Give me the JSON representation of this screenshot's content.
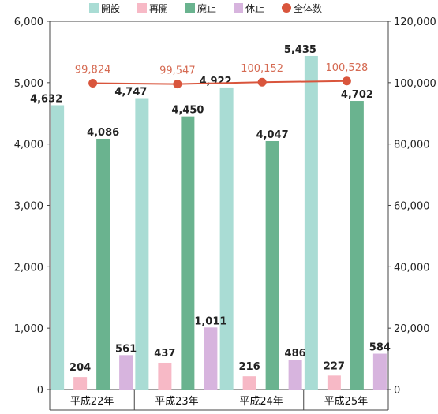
{
  "chart_data": {
    "type": "bar",
    "categories": [
      "平成22年",
      "平成23年",
      "平成24年",
      "平成25年"
    ],
    "series": [
      {
        "name": "開設",
        "values": [
          4632,
          4747,
          4922,
          5435
        ],
        "color": "#a9dcd4"
      },
      {
        "name": "再開",
        "values": [
          204,
          437,
          216,
          227
        ],
        "color": "#f7b9c6"
      },
      {
        "name": "廃止",
        "values": [
          4086,
          4450,
          4047,
          4702
        ],
        "color": "#6ab38f"
      },
      {
        "name": "休止",
        "values": [
          561,
          1011,
          486,
          584
        ],
        "color": "#d7b4de"
      }
    ],
    "line_series": {
      "name": "全体数",
      "values": [
        99824,
        99547,
        100152,
        100528
      ],
      "color": "#d9553c",
      "axis": "right"
    },
    "bar_labels": [
      [
        "4,632",
        "4,747",
        "4,922",
        "5,435"
      ],
      [
        "204",
        "437",
        "216",
        "227"
      ],
      [
        "4,086",
        "4,450",
        "4,047",
        "4,702"
      ],
      [
        "561",
        "1,011",
        "486",
        "584"
      ]
    ],
    "line_labels": [
      "99,824",
      "99,547",
      "100,152",
      "100,528"
    ],
    "left_axis": {
      "ylim": [
        0,
        6000
      ],
      "ticks": [
        "0",
        "1,000",
        "2,000",
        "3,000",
        "4,000",
        "5,000",
        "6,000"
      ]
    },
    "right_axis": {
      "ylim": [
        0,
        120000
      ],
      "ticks": [
        "0",
        "20,000",
        "40,000",
        "60,000",
        "80,000",
        "100,000",
        "120,000"
      ]
    },
    "legend": {
      "position": "top"
    },
    "grid": false
  }
}
